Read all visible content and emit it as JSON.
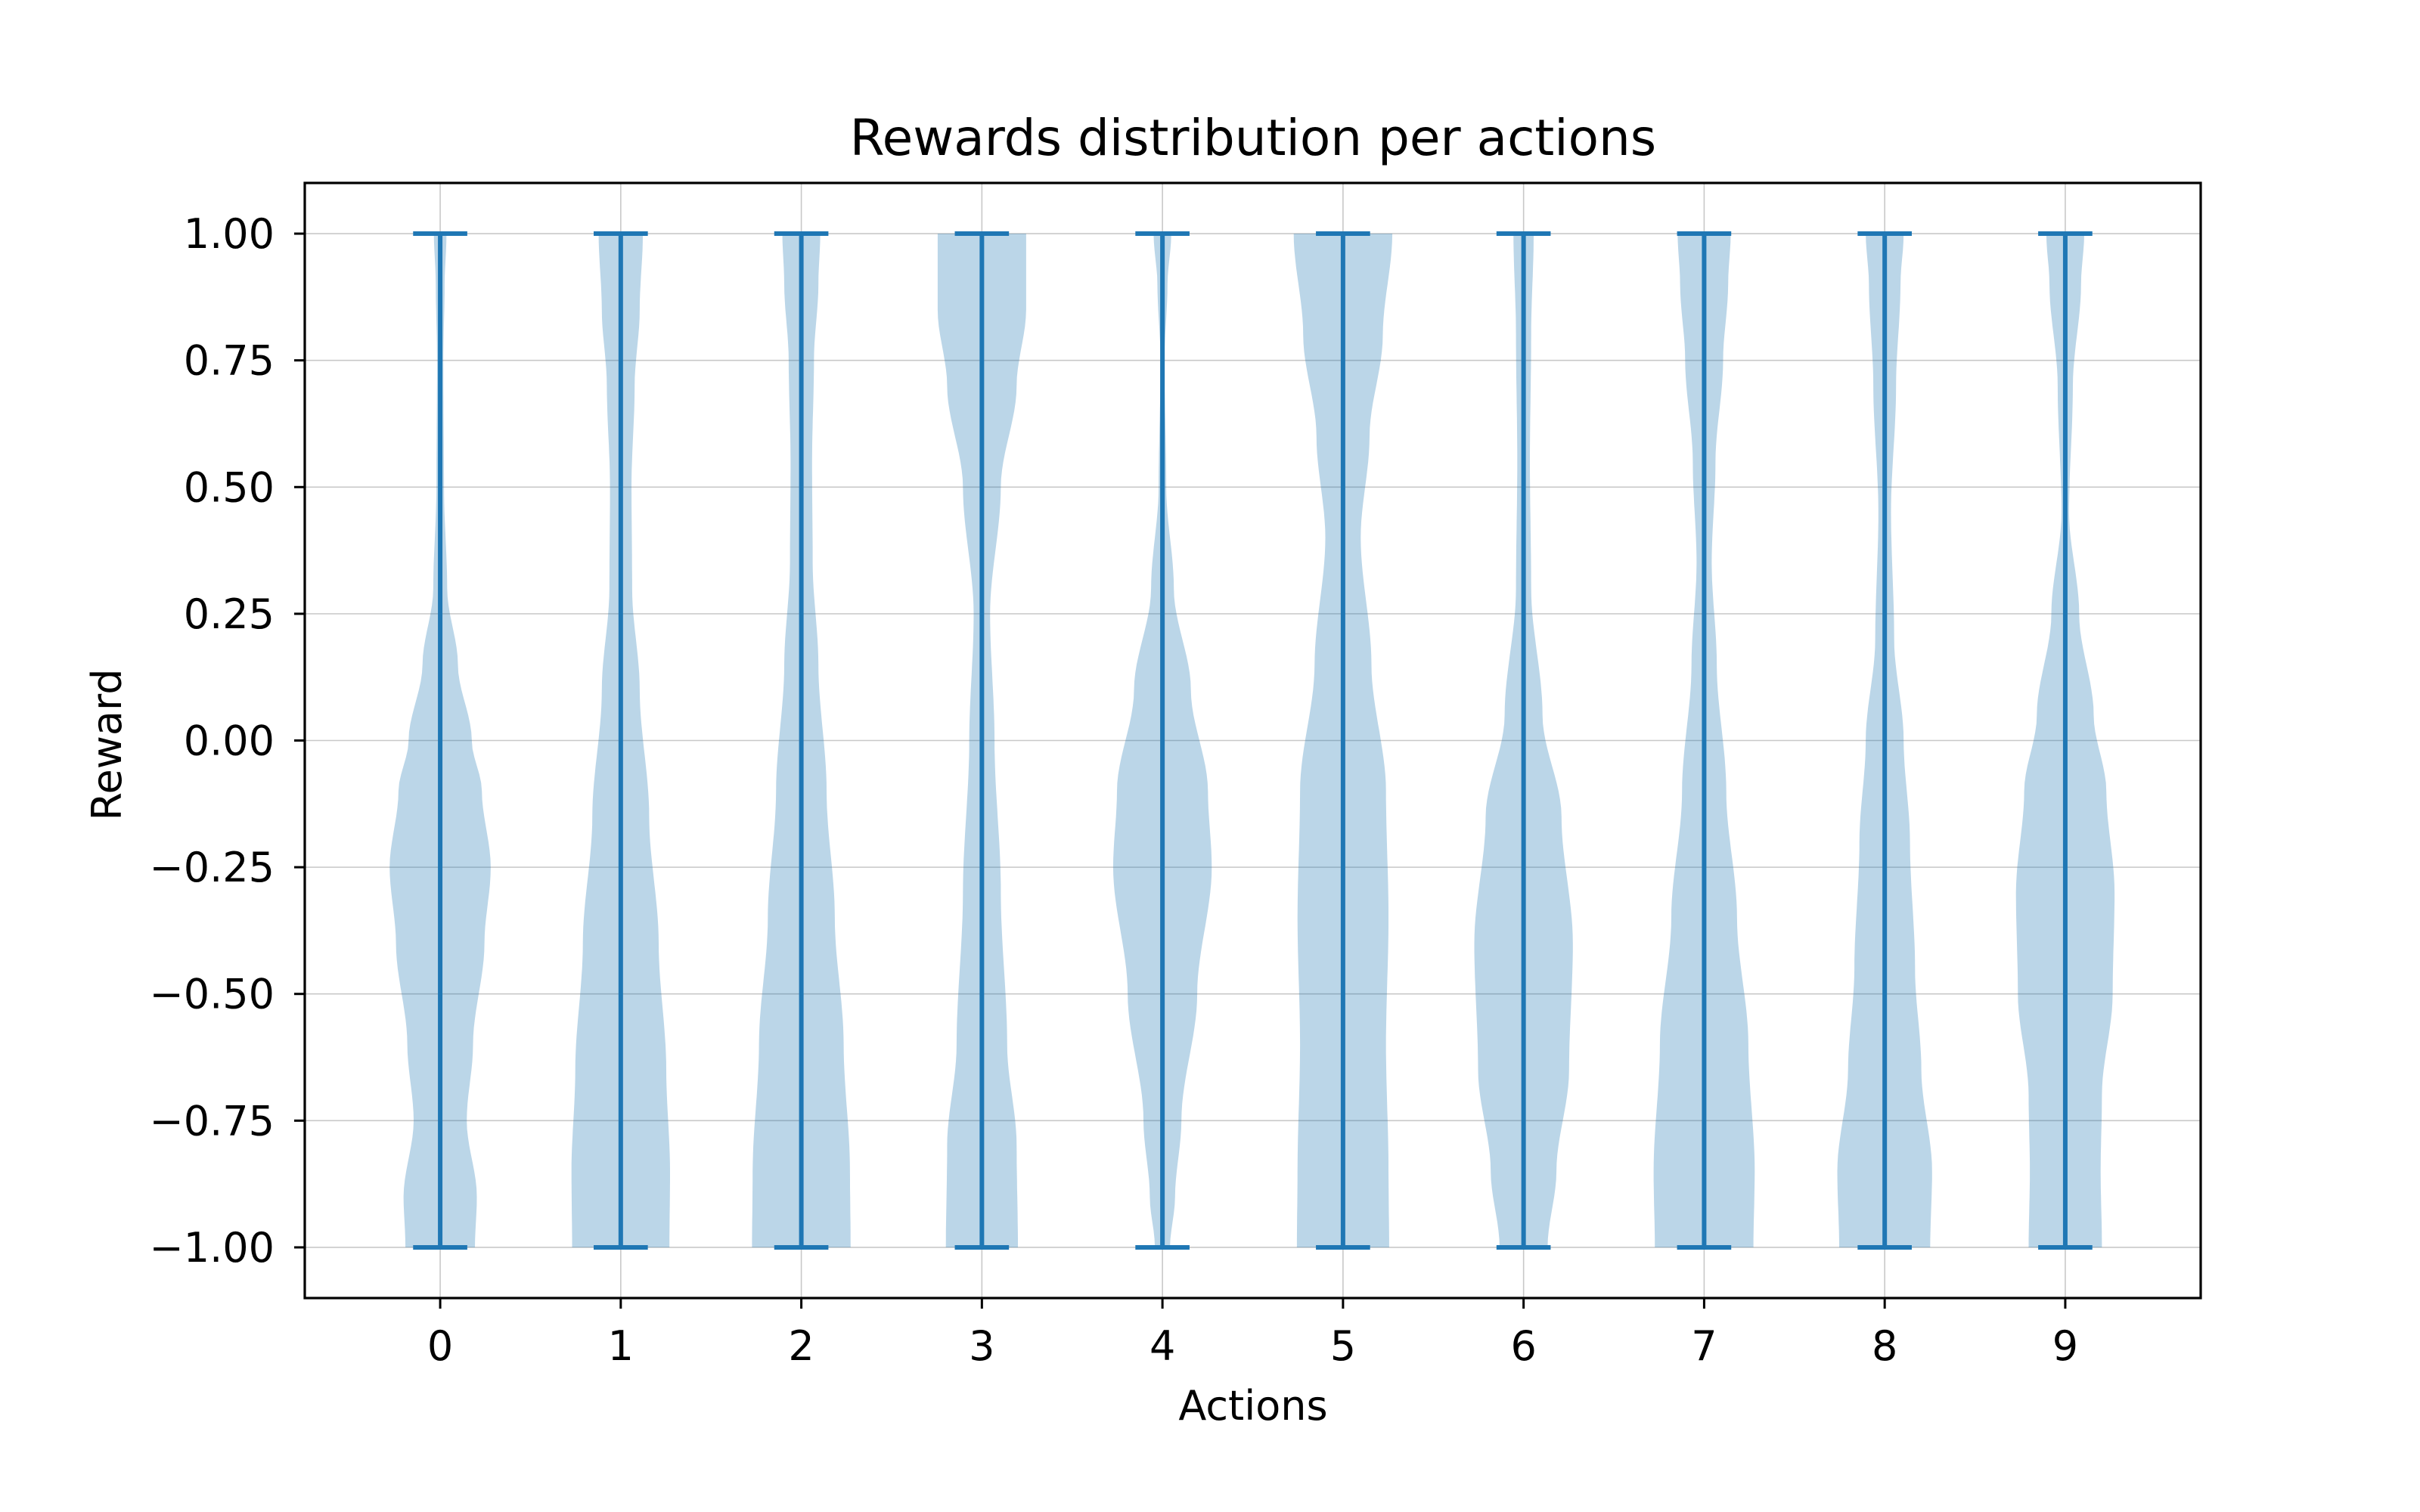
{
  "chart_data": {
    "type": "violin",
    "title": "Rewards distribution per actions",
    "xlabel": "Actions",
    "ylabel": "Reward",
    "x_ticks": [
      "0",
      "1",
      "2",
      "3",
      "4",
      "5",
      "6",
      "7",
      "8",
      "9"
    ],
    "y_ticks": [
      1.0,
      0.75,
      0.5,
      0.25,
      0.0,
      -0.25,
      -0.5,
      -0.75,
      -1.0
    ],
    "y_tick_labels": [
      "1.00",
      "0.75",
      "0.50",
      "0.25",
      "0.00",
      "−0.25",
      "−0.50",
      "−0.75",
      "−1.00"
    ],
    "xlim": [
      -0.75,
      9.75
    ],
    "ylim": [
      -1.1,
      1.1
    ],
    "grid": true,
    "colors": {
      "violin_fill": "#1f77b4",
      "violin_alpha": 0.3,
      "violin_line": "#1f77b4",
      "grid": "#b0b0b0",
      "axes": "#000000"
    },
    "violin_half_width_max": 0.35,
    "violins": [
      {
        "action": "0",
        "min": -1.0,
        "max": 1.0,
        "density_y": [
          -1.0,
          -0.9,
          -0.75,
          -0.6,
          -0.4,
          -0.25,
          -0.1,
          0.0,
          0.15,
          0.3,
          0.5,
          0.75,
          0.9,
          1.0
        ],
        "density_w": [
          0.55,
          0.58,
          0.42,
          0.52,
          0.7,
          0.8,
          0.66,
          0.5,
          0.28,
          0.11,
          0.06,
          0.05,
          0.07,
          0.1
        ]
      },
      {
        "action": "1",
        "min": -1.0,
        "max": 1.0,
        "density_y": [
          -1.0,
          -0.85,
          -0.65,
          -0.4,
          -0.15,
          0.1,
          0.3,
          0.5,
          0.7,
          0.85,
          1.0
        ],
        "density_w": [
          0.77,
          0.78,
          0.72,
          0.6,
          0.45,
          0.3,
          0.18,
          0.17,
          0.22,
          0.3,
          0.35
        ]
      },
      {
        "action": "2",
        "min": -1.0,
        "max": 1.0,
        "density_y": [
          -1.0,
          -0.85,
          -0.6,
          -0.35,
          -0.1,
          0.15,
          0.35,
          0.55,
          0.75,
          0.9,
          1.0
        ],
        "density_w": [
          0.78,
          0.77,
          0.67,
          0.53,
          0.4,
          0.27,
          0.18,
          0.17,
          0.2,
          0.27,
          0.3
        ]
      },
      {
        "action": "3",
        "min": -1.0,
        "max": 1.0,
        "density_y": [
          -1.0,
          -0.8,
          -0.6,
          -0.3,
          0.0,
          0.25,
          0.5,
          0.7,
          0.85,
          1.0
        ],
        "density_w": [
          0.57,
          0.55,
          0.4,
          0.3,
          0.2,
          0.13,
          0.3,
          0.55,
          0.7,
          0.7
        ]
      },
      {
        "action": "4",
        "min": -1.0,
        "max": 1.0,
        "density_y": [
          -1.0,
          -0.9,
          -0.75,
          -0.5,
          -0.25,
          -0.1,
          0.1,
          0.3,
          0.5,
          0.75,
          0.9,
          1.0
        ],
        "density_w": [
          0.12,
          0.2,
          0.3,
          0.55,
          0.78,
          0.72,
          0.45,
          0.18,
          0.06,
          0.03,
          0.08,
          0.14
        ]
      },
      {
        "action": "5",
        "min": -1.0,
        "max": 1.0,
        "density_y": [
          -1.0,
          -0.85,
          -0.6,
          -0.35,
          -0.1,
          0.15,
          0.4,
          0.6,
          0.8,
          1.0
        ],
        "density_w": [
          0.73,
          0.72,
          0.68,
          0.72,
          0.68,
          0.45,
          0.28,
          0.42,
          0.63,
          0.78
        ]
      },
      {
        "action": "6",
        "min": -1.0,
        "max": 1.0,
        "density_y": [
          -1.0,
          -0.85,
          -0.65,
          -0.4,
          -0.15,
          0.05,
          0.3,
          0.55,
          0.8,
          1.0
        ],
        "density_w": [
          0.38,
          0.52,
          0.72,
          0.78,
          0.6,
          0.3,
          0.12,
          0.1,
          0.12,
          0.16
        ]
      },
      {
        "action": "7",
        "min": -1.0,
        "max": 1.0,
        "density_y": [
          -1.0,
          -0.85,
          -0.6,
          -0.35,
          -0.1,
          0.15,
          0.35,
          0.55,
          0.75,
          0.9,
          1.0
        ],
        "density_w": [
          0.78,
          0.8,
          0.7,
          0.52,
          0.35,
          0.2,
          0.12,
          0.18,
          0.3,
          0.38,
          0.42
        ]
      },
      {
        "action": "8",
        "min": -1.0,
        "max": 1.0,
        "density_y": [
          -1.0,
          -0.85,
          -0.65,
          -0.45,
          -0.2,
          0.0,
          0.2,
          0.45,
          0.7,
          0.9,
          1.0
        ],
        "density_w": [
          0.72,
          0.75,
          0.58,
          0.48,
          0.4,
          0.3,
          0.15,
          0.1,
          0.18,
          0.25,
          0.3
        ]
      },
      {
        "action": "9",
        "min": -1.0,
        "max": 1.0,
        "density_y": [
          -1.0,
          -0.85,
          -0.7,
          -0.5,
          -0.3,
          -0.1,
          0.05,
          0.25,
          0.45,
          0.7,
          0.9,
          1.0
        ],
        "density_w": [
          0.58,
          0.56,
          0.58,
          0.75,
          0.78,
          0.65,
          0.45,
          0.22,
          0.06,
          0.12,
          0.25,
          0.3
        ]
      }
    ]
  }
}
